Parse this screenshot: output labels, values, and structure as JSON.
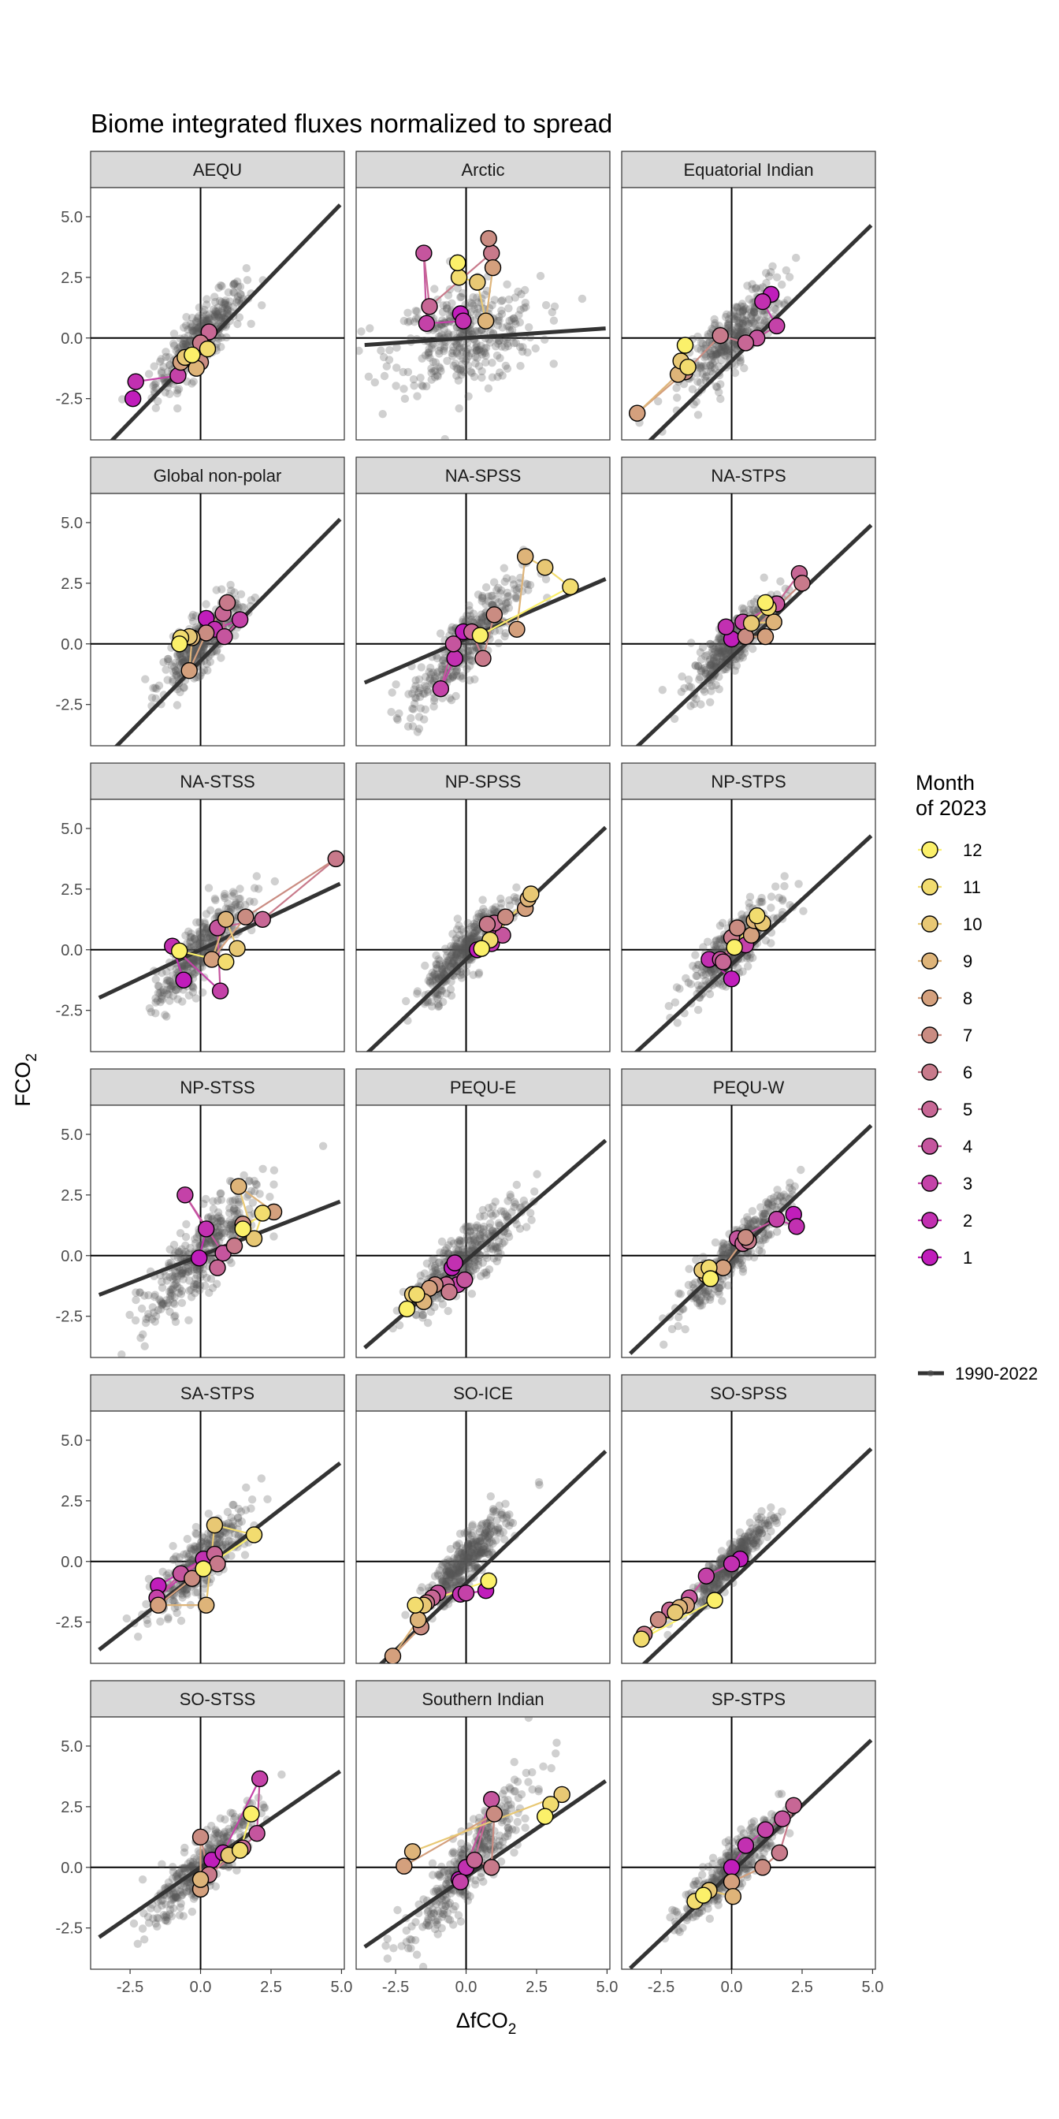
{
  "chart_data": {
    "type": "scatter",
    "title": "Biome integrated fluxes normalized to spread",
    "xlabel": "ΔfCO2",
    "ylabel": "FCO2",
    "xlim": [
      -3.9,
      5.1
    ],
    "ylim": [
      -4.2,
      6.2
    ],
    "x_ticks": [
      -2.5,
      0.0,
      2.5,
      5.0
    ],
    "x_tick_labels": [
      "-2.5",
      "0.0",
      "2.5",
      "5.0"
    ],
    "y_ticks": [
      -2.5,
      0.0,
      2.5,
      5.0
    ],
    "y_tick_labels": [
      "-2.5",
      "0.0",
      "2.5",
      "5.0"
    ],
    "legend": {
      "title_line1": "Month",
      "title_line2": "of 2023",
      "months": [
        "12",
        "11",
        "10",
        "9",
        "8",
        "7",
        "6",
        "5",
        "4",
        "3",
        "2",
        "1"
      ],
      "colors": [
        "#fbf06a",
        "#f2dc6f",
        "#e8c874",
        "#deb479",
        "#d4a07d",
        "#ca8c82",
        "#c87a8b",
        "#c76795",
        "#c5559e",
        "#c442a8",
        "#c230b1",
        "#c01dbb"
      ],
      "line_label": "1990-2022",
      "position": "right"
    },
    "line_color": "#333333",
    "background_point_color": "#555555",
    "panels": [
      {
        "name": "AEQU",
        "line": [
          1.2,
          -0.45
        ],
        "bg": [
          1.15,
          0.0,
          0.55,
          1.05
        ],
        "months": [
          [
            -2.4,
            -2.5
          ],
          [
            -2.3,
            -1.8
          ],
          [
            -0.8,
            -1.55
          ],
          [
            0.0,
            -0.6
          ],
          [
            0.3,
            0.25
          ],
          [
            0.0,
            -0.2
          ],
          [
            0.0,
            -1.0
          ],
          [
            -0.7,
            -1.0
          ],
          [
            -0.15,
            -1.25
          ],
          [
            -0.55,
            -0.8
          ],
          [
            0.25,
            -0.45
          ],
          [
            -0.3,
            -0.7
          ]
        ]
      },
      {
        "name": "Arctic",
        "line": [
          0.08,
          0.0
        ],
        "bg": [
          0.2,
          0.0,
          0.9,
          1.0
        ],
        "months": [
          [
            -0.2,
            1.0
          ],
          [
            -0.1,
            0.7
          ],
          [
            -1.4,
            0.6
          ],
          [
            -1.5,
            3.5
          ],
          [
            -1.3,
            1.3
          ],
          [
            0.9,
            3.5
          ],
          [
            0.8,
            4.1
          ],
          [
            0.95,
            2.9
          ],
          [
            0.7,
            0.7
          ],
          [
            0.4,
            2.3
          ],
          [
            -0.25,
            2.5
          ],
          [
            -0.3,
            3.1
          ]
        ]
      },
      {
        "name": "Equatorial Indian",
        "line": [
          1.13,
          -0.95
        ],
        "bg": [
          1.1,
          0.0,
          0.6,
          1.2
        ],
        "months": [
          [
            1.4,
            1.8
          ],
          [
            1.1,
            1.5
          ],
          [
            1.6,
            0.5
          ],
          [
            0.9,
            0.0
          ],
          [
            0.5,
            -0.2
          ],
          [
            -0.4,
            0.1
          ],
          [
            -1.65,
            -1.4
          ],
          [
            -3.35,
            -3.1
          ],
          [
            -1.9,
            -1.5
          ],
          [
            -1.8,
            -0.95
          ],
          [
            -1.55,
            -1.2
          ],
          [
            -1.65,
            -0.3
          ]
        ]
      },
      {
        "name": "Global non-polar",
        "line": [
          1.18,
          -0.7
        ],
        "bg": [
          1.1,
          0.0,
          0.45,
          1.0
        ],
        "months": [
          [
            0.2,
            1.05
          ],
          [
            0.5,
            0.6
          ],
          [
            1.4,
            1.0
          ],
          [
            0.85,
            0.3
          ],
          [
            0.8,
            1.25
          ],
          [
            0.95,
            1.7
          ],
          [
            0.2,
            0.45
          ],
          [
            -0.4,
            -1.1
          ],
          [
            -0.3,
            0.25
          ],
          [
            -0.4,
            0.3
          ],
          [
            -0.7,
            0.25
          ],
          [
            -0.75,
            0.0
          ]
        ]
      },
      {
        "name": "NA-SPSS",
        "line": [
          0.5,
          0.2
        ],
        "bg": [
          1.2,
          0.0,
          0.7,
          1.3
        ],
        "months": [
          [
            -0.1,
            0.5
          ],
          [
            -0.4,
            -0.6
          ],
          [
            -0.9,
            -1.85
          ],
          [
            -0.45,
            0.0
          ],
          [
            0.2,
            0.5
          ],
          [
            0.6,
            -0.6
          ],
          [
            1.0,
            1.2
          ],
          [
            1.8,
            0.6
          ],
          [
            2.1,
            3.6
          ],
          [
            2.8,
            3.15
          ],
          [
            3.7,
            2.35
          ],
          [
            0.5,
            0.35
          ]
        ]
      },
      {
        "name": "NA-STPS",
        "line": [
          1.1,
          -0.55
        ],
        "bg": [
          1.2,
          0.0,
          0.5,
          0.9
        ],
        "months": [
          [
            0.0,
            0.2
          ],
          [
            -0.2,
            0.7
          ],
          [
            0.4,
            0.9
          ],
          [
            1.6,
            1.65
          ],
          [
            2.4,
            2.9
          ],
          [
            2.5,
            2.5
          ],
          [
            0.5,
            0.3
          ],
          [
            1.2,
            0.3
          ],
          [
            1.5,
            0.9
          ],
          [
            0.7,
            0.85
          ],
          [
            1.3,
            1.5
          ],
          [
            1.2,
            1.7
          ]
        ]
      },
      {
        "name": "NA-STSS",
        "line": [
          0.55,
          0.0
        ],
        "bg": [
          1.3,
          0.0,
          0.55,
          1.1
        ],
        "months": [
          [
            -0.6,
            -1.25
          ],
          [
            -1.0,
            0.15
          ],
          [
            0.7,
            -1.7
          ],
          [
            0.6,
            0.9
          ],
          [
            2.2,
            1.25
          ],
          [
            4.8,
            3.75
          ],
          [
            1.6,
            1.35
          ],
          [
            0.4,
            -0.4
          ],
          [
            0.9,
            1.25
          ],
          [
            1.3,
            0.05
          ],
          [
            0.9,
            -0.5
          ],
          [
            -0.75,
            -0.05
          ]
        ]
      },
      {
        "name": "NP-SPSS",
        "line": [
          1.1,
          -0.4
        ],
        "bg": [
          1.2,
          0.0,
          0.5,
          0.9
        ],
        "months": [
          [
            0.4,
            0.0
          ],
          [
            0.9,
            0.25
          ],
          [
            1.0,
            0.6
          ],
          [
            1.3,
            0.6
          ],
          [
            1.0,
            1.1
          ],
          [
            0.75,
            1.05
          ],
          [
            1.4,
            1.35
          ],
          [
            2.1,
            1.7
          ],
          [
            2.2,
            2.1
          ],
          [
            2.3,
            2.3
          ],
          [
            0.85,
            0.4
          ],
          [
            0.55,
            0.05
          ]
        ]
      },
      {
        "name": "NP-STPS",
        "line": [
          1.07,
          -0.6
        ],
        "bg": [
          1.0,
          0.0,
          0.55,
          1.0
        ],
        "months": [
          [
            0.0,
            -1.2
          ],
          [
            -0.8,
            -0.4
          ],
          [
            0.5,
            0.2
          ],
          [
            -0.4,
            -0.4
          ],
          [
            -0.3,
            -0.5
          ],
          [
            0.0,
            0.5
          ],
          [
            0.2,
            0.9
          ],
          [
            0.7,
            0.6
          ],
          [
            0.8,
            1.2
          ],
          [
            1.1,
            1.1
          ],
          [
            0.9,
            1.4
          ],
          [
            0.1,
            0.1
          ]
        ]
      },
      {
        "name": "NP-STSS",
        "line": [
          0.45,
          0.0
        ],
        "bg": [
          1.2,
          0.0,
          0.7,
          1.4
        ],
        "months": [
          [
            -0.05,
            -0.1
          ],
          [
            0.2,
            1.1
          ],
          [
            -0.55,
            2.5
          ],
          [
            0.8,
            0.1
          ],
          [
            0.6,
            -0.5
          ],
          [
            1.2,
            0.4
          ],
          [
            1.5,
            1.3
          ],
          [
            2.6,
            1.8
          ],
          [
            1.35,
            2.85
          ],
          [
            1.9,
            0.7
          ],
          [
            2.2,
            1.75
          ],
          [
            1.5,
            1.1
          ]
        ]
      },
      {
        "name": "PEQU-E",
        "line": [
          1.0,
          -0.2
        ],
        "bg": [
          1.0,
          0.0,
          0.7,
          1.1
        ],
        "months": [
          [
            -0.5,
            -0.5
          ],
          [
            -0.4,
            -0.3
          ],
          [
            -0.3,
            -1.2
          ],
          [
            -0.05,
            -1.0
          ],
          [
            -0.7,
            -1.2
          ],
          [
            -0.6,
            -1.5
          ],
          [
            -1.1,
            -1.2
          ],
          [
            -1.3,
            -1.35
          ],
          [
            -1.5,
            -1.9
          ],
          [
            -1.9,
            -1.6
          ],
          [
            -1.75,
            -1.6
          ],
          [
            -2.1,
            -2.2
          ]
        ]
      },
      {
        "name": "PEQU-W",
        "line": [
          1.1,
          -0.08
        ],
        "bg": [
          1.2,
          0.0,
          0.7,
          0.8
        ],
        "months": [
          [
            2.2,
            1.7
          ],
          [
            2.3,
            1.2
          ],
          [
            1.6,
            1.5
          ],
          [
            0.2,
            0.7
          ],
          [
            0.4,
            0.5
          ],
          [
            0.6,
            0.6
          ],
          [
            0.5,
            0.75
          ],
          [
            -0.3,
            -0.5
          ],
          [
            -0.9,
            -0.8
          ],
          [
            -1.05,
            -0.6
          ],
          [
            -0.8,
            -0.5
          ],
          [
            -0.75,
            -0.95
          ]
        ]
      },
      {
        "name": "SA-STPS",
        "line": [
          0.9,
          -0.4
        ],
        "bg": [
          1.1,
          0.0,
          0.6,
          1.1
        ],
        "months": [
          [
            -1.5,
            -1.0
          ],
          [
            0.1,
            0.1
          ],
          [
            -1.55,
            -1.5
          ],
          [
            -0.7,
            -0.5
          ],
          [
            0.5,
            0.3
          ],
          [
            0.6,
            -0.1
          ],
          [
            -0.3,
            -0.7
          ],
          [
            -1.5,
            -1.8
          ],
          [
            0.2,
            -1.8
          ],
          [
            0.5,
            1.5
          ],
          [
            1.9,
            1.1
          ],
          [
            0.1,
            -0.3
          ]
        ]
      },
      {
        "name": "SO-ICE",
        "line": [
          1.1,
          -0.9
        ],
        "bg": [
          1.2,
          0.0,
          0.5,
          0.9
        ],
        "months": [
          [
            0.7,
            -1.2
          ],
          [
            -0.2,
            -1.35
          ],
          [
            0.0,
            -1.3
          ],
          [
            -1.0,
            -1.3
          ],
          [
            -1.2,
            -1.5
          ],
          [
            -1.4,
            -1.7
          ],
          [
            -1.6,
            -2.7
          ],
          [
            -2.6,
            -3.9
          ],
          [
            -1.7,
            -2.4
          ],
          [
            -1.5,
            -1.8
          ],
          [
            -1.8,
            -1.8
          ],
          [
            0.8,
            -0.8
          ]
        ]
      },
      {
        "name": "SO-SPSS",
        "line": [
          1.1,
          -0.8
        ],
        "bg": [
          1.2,
          0.0,
          0.5,
          0.6
        ],
        "months": [
          [
            0.3,
            0.1
          ],
          [
            0.0,
            -0.1
          ],
          [
            -0.9,
            -0.6
          ],
          [
            -1.5,
            -1.5
          ],
          [
            -2.2,
            -2.0
          ],
          [
            -3.1,
            -3.0
          ],
          [
            -2.6,
            -2.4
          ],
          [
            -1.6,
            -1.8
          ],
          [
            -1.85,
            -1.9
          ],
          [
            -2.0,
            -2.1
          ],
          [
            -3.2,
            -3.2
          ],
          [
            -0.6,
            -1.6
          ]
        ]
      },
      {
        "name": "SO-STSS",
        "line": [
          0.8,
          0.0
        ],
        "bg": [
          1.1,
          0.0,
          0.6,
          1.0
        ],
        "months": [
          [
            0.4,
            0.3
          ],
          [
            0.8,
            0.6
          ],
          [
            2.1,
            3.65
          ],
          [
            2.0,
            1.4
          ],
          [
            1.5,
            0.8
          ],
          [
            0.3,
            -0.3
          ],
          [
            0.0,
            1.25
          ],
          [
            0.0,
            -0.9
          ],
          [
            0.0,
            -0.5
          ],
          [
            1.0,
            0.5
          ],
          [
            1.4,
            0.7
          ],
          [
            1.8,
            2.2
          ]
        ]
      },
      {
        "name": "Southern Indian",
        "line": [
          0.8,
          -0.4
        ],
        "bg": [
          1.4,
          0.0,
          0.8,
          1.3
        ],
        "months": [
          [
            -0.25,
            -0.5
          ],
          [
            0.0,
            0.0
          ],
          [
            -0.2,
            -0.6
          ],
          [
            0.9,
            2.8
          ],
          [
            0.3,
            0.3
          ],
          [
            0.9,
            0.0
          ],
          [
            1.0,
            2.2
          ],
          [
            -2.2,
            0.05
          ],
          [
            -1.9,
            0.65
          ],
          [
            3.4,
            3.0
          ],
          [
            3.0,
            2.6
          ],
          [
            2.8,
            2.1
          ]
        ]
      },
      {
        "name": "SP-STPS",
        "line": [
          1.1,
          -0.2
        ],
        "bg": [
          1.1,
          0.0,
          0.6,
          0.9
        ],
        "months": [
          [
            0.0,
            0.0
          ],
          [
            0.5,
            0.9
          ],
          [
            1.2,
            1.55
          ],
          [
            1.8,
            2.0
          ],
          [
            2.2,
            2.55
          ],
          [
            1.7,
            0.6
          ],
          [
            1.1,
            0.0
          ],
          [
            0.0,
            -0.6
          ],
          [
            0.05,
            -1.2
          ],
          [
            -0.8,
            -0.95
          ],
          [
            -1.3,
            -1.4
          ],
          [
            -1.0,
            -1.15
          ]
        ]
      }
    ]
  }
}
